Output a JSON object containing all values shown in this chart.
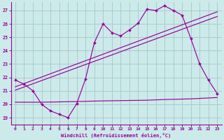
{
  "bg_color": "#cceaea",
  "grid_color": "#aacccc",
  "line_color": "#990099",
  "xlabel": "Windchill (Refroidissement éolien,°C)",
  "xlim": [
    -0.5,
    23.5
  ],
  "ylim": [
    18.5,
    27.6
  ],
  "xticks": [
    0,
    1,
    2,
    3,
    4,
    5,
    6,
    7,
    8,
    9,
    10,
    11,
    12,
    13,
    14,
    15,
    16,
    17,
    18,
    19,
    20,
    21,
    22,
    23
  ],
  "yticks": [
    19,
    20,
    21,
    22,
    23,
    24,
    25,
    26,
    27
  ],
  "line1_x": [
    0,
    1,
    2,
    3,
    4,
    5,
    6,
    7,
    8,
    9,
    10,
    11,
    12,
    13,
    14,
    15,
    16,
    17,
    18,
    19,
    20,
    21,
    22,
    23
  ],
  "line1_y": [
    21.8,
    21.5,
    21.0,
    20.0,
    19.5,
    19.25,
    19.0,
    20.05,
    21.9,
    24.6,
    26.0,
    25.35,
    25.1,
    25.55,
    26.05,
    27.1,
    27.0,
    27.35,
    27.0,
    26.65,
    24.9,
    23.0,
    21.8,
    20.8
  ],
  "line2_x": [
    0,
    23
  ],
  "line2_y": [
    21.05,
    26.55
  ],
  "line3_x": [
    0,
    23
  ],
  "line3_y": [
    21.3,
    26.9
  ],
  "line4_x": [
    0,
    3,
    7,
    10,
    15,
    17,
    20,
    23
  ],
  "line4_y": [
    20.15,
    20.15,
    20.2,
    20.25,
    20.3,
    20.35,
    20.4,
    20.5
  ]
}
